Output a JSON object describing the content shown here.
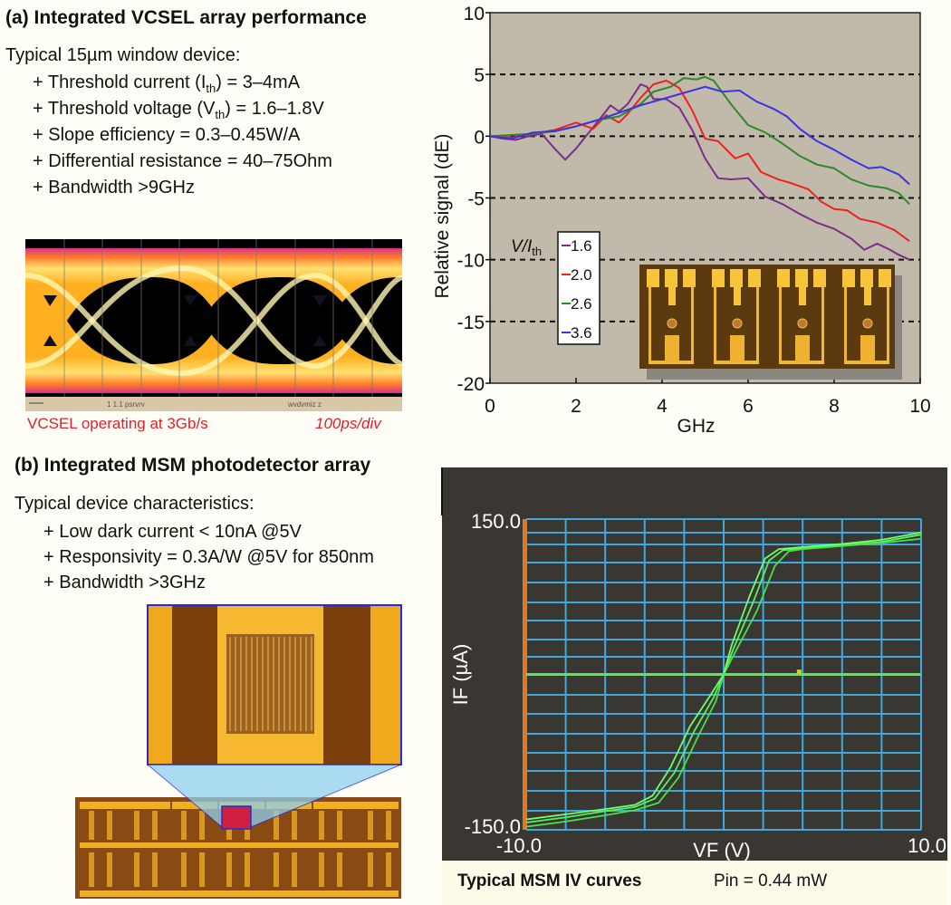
{
  "panel_a": {
    "heading": "(a) Integrated VCSEL array performance",
    "intro": "Typical 15µm window device:",
    "bullets": [
      {
        "prefix": "+ Threshold current (I",
        "sub": "th",
        "suffix": ") = 3–4mA"
      },
      {
        "prefix": "+ Threshold voltage (V",
        "sub": "th",
        "suffix": ") = 1.6–1.8V"
      },
      {
        "prefix": "+ Slope efficiency = 0.3–0.45W/A",
        "sub": "",
        "suffix": ""
      },
      {
        "prefix": "+ Differential resistance = 40–75Ohm",
        "sub": "",
        "suffix": ""
      },
      {
        "prefix": "+ Bandwidth >9GHz",
        "sub": "",
        "suffix": ""
      }
    ],
    "eye_diagram": {
      "caption_left": "VCSEL operating at 3Gb/s",
      "caption_right": "100ps/div",
      "description": "VCSEL eye diagram"
    },
    "inset_photo": "VCSEL array micrograph"
  },
  "panel_b": {
    "heading": "(b) Integrated MSM photodetector array",
    "intro": "Typical device characteristics:",
    "bullets": [
      "+ Low dark current < 10nA @5V",
      "+ Responsivity = 0.3A/W @5V for 850nm",
      "+ Bandwidth >3GHz"
    ],
    "photo": "MSM photodetector array micrograph with magnified interdigitated electrode",
    "iv_caption": "Typical MSM IV curves",
    "iv_pin": "Pin = 0.44 mW"
  },
  "chart_data": [
    {
      "type": "line",
      "title": "",
      "xlabel": "GHz",
      "ylabel": "Relative signal (dE)",
      "xlim": [
        0,
        10
      ],
      "ylim": [
        -20,
        10
      ],
      "xticks": [
        "0",
        "2",
        "4",
        "6",
        "8",
        "10"
      ],
      "yticks": [
        "10",
        "5",
        "0",
        "-5",
        "-10",
        "-15",
        "-20"
      ],
      "grid": "dashed horizontal at 5, 0, -5, -10, -15",
      "legend": {
        "title": "V/I",
        "title_sub": "th",
        "placement": "middle-left"
      },
      "background": "#c1b9aa",
      "series": [
        {
          "name": "1.6",
          "color": "#7b2d8a",
          "x": [
            0,
            0.3,
            0.6,
            0.9,
            1.2,
            1.5,
            1.75,
            2.0,
            2.3,
            2.6,
            2.8,
            3.0,
            3.2,
            3.5,
            3.65,
            3.8,
            4.1,
            4.4,
            4.7,
            5.0,
            5.3,
            5.6,
            6.0,
            6.4,
            6.8,
            7.2,
            7.6,
            8.0,
            8.4,
            8.7,
            9.0,
            9.3,
            9.5,
            9.75
          ],
          "y": [
            0,
            -0.2,
            -0.3,
            0,
            0.2,
            -1,
            -1.9,
            -1,
            0.3,
            1.6,
            2.5,
            2,
            2.6,
            4.2,
            4,
            3,
            3,
            2.3,
            0.5,
            -1.8,
            -3.4,
            -3.5,
            -3.4,
            -4.9,
            -5.5,
            -6.3,
            -7,
            -7.5,
            -8.3,
            -9.2,
            -8.7,
            -9.2,
            -9.6,
            -10
          ]
        },
        {
          "name": "2.0",
          "color": "#f0221e",
          "x": [
            0,
            0.5,
            1.0,
            1.5,
            2.0,
            2.4,
            2.7,
            3.0,
            3.2,
            3.5,
            3.8,
            4.1,
            4.4,
            4.7,
            5.0,
            5.3,
            5.7,
            6.0,
            6.3,
            6.7,
            7.0,
            7.4,
            7.7,
            8.0,
            8.3,
            8.6,
            9.0,
            9.4,
            9.75
          ],
          "y": [
            0,
            -0.1,
            0.2,
            0.5,
            1.1,
            0.6,
            1.7,
            1.1,
            1.8,
            3.1,
            4.2,
            4.5,
            3.9,
            2.1,
            -0.2,
            -0.4,
            -1.8,
            -1.4,
            -2.9,
            -3.5,
            -3.8,
            -4.3,
            -5.3,
            -5.9,
            -6.0,
            -6.7,
            -7.0,
            -7.6,
            -8.5
          ]
        },
        {
          "name": "2.6",
          "color": "#2c8a2c",
          "x": [
            0,
            0.5,
            1.0,
            1.5,
            2.0,
            2.5,
            3.0,
            3.5,
            3.8,
            4.2,
            4.5,
            4.8,
            5.0,
            5.2,
            5.6,
            6.0,
            6.4,
            6.8,
            7.2,
            7.6,
            8.0,
            8.4,
            8.8,
            9.2,
            9.5,
            9.75
          ],
          "y": [
            0,
            0.1,
            0.2,
            0.4,
            0.8,
            1.3,
            1.6,
            2.6,
            3.6,
            4.0,
            4.7,
            4.6,
            4.8,
            4.5,
            2.6,
            0.9,
            0.3,
            -0.6,
            -1.6,
            -2.3,
            -2.6,
            -3.5,
            -4.0,
            -4.2,
            -4.6,
            -5.5
          ]
        },
        {
          "name": "3.6",
          "color": "#3a35e0",
          "x": [
            0,
            0.5,
            1.0,
            1.5,
            2.0,
            2.5,
            3.0,
            3.5,
            4.0,
            4.4,
            4.8,
            5.0,
            5.4,
            5.8,
            6.2,
            6.6,
            6.9,
            7.2,
            7.6,
            8.0,
            8.4,
            8.8,
            9.1,
            9.5,
            9.75
          ],
          "y": [
            0,
            -0.2,
            0.3,
            0.4,
            0.8,
            1.3,
            1.9,
            2.5,
            3.0,
            3.4,
            3.8,
            4.0,
            3.6,
            3.7,
            2.8,
            2.2,
            1.6,
            0.6,
            -0.4,
            -1.1,
            -1.9,
            -2.6,
            -2.5,
            -3.1,
            -3.9
          ]
        }
      ]
    },
    {
      "type": "line",
      "title": "Typical MSM IV curves",
      "xlabel": "VF (V)",
      "ylabel": "IF (µA)",
      "xlim": [
        -10,
        10
      ],
      "ylim": [
        -150,
        150
      ],
      "xtick_labels": [
        "-10.0",
        "10.0"
      ],
      "ytick_labels": [
        "150.0",
        "-150.0"
      ],
      "grid": "on",
      "annotation": "Pin = 0.44 mW",
      "background": "#3a3632",
      "grid_color": "#3fa9df",
      "axis_color": "#e07a20",
      "series": [
        {
          "name": "IV sweep 1",
          "color": "#5cf05c",
          "x": [
            -10,
            -8,
            -6,
            -4.5,
            -3.5,
            -2.5,
            -1.5,
            -0.5,
            0,
            0.5,
            1.5,
            2.3,
            3.0,
            4,
            6,
            8,
            10
          ],
          "y": [
            -143,
            -138,
            -132,
            -128,
            -120,
            -95,
            -55,
            -22,
            0,
            25,
            70,
            110,
            120,
            122,
            125,
            128,
            135
          ]
        },
        {
          "name": "IV sweep 2",
          "color": "#48e048",
          "x": [
            -10,
            -8,
            -6,
            -4.5,
            -3.3,
            -2.3,
            -1.3,
            -0.4,
            0,
            0.6,
            1.7,
            2.6,
            3.3,
            4,
            6,
            8,
            10
          ],
          "y": [
            -147,
            -142,
            -136,
            -131,
            -124,
            -100,
            -60,
            -26,
            0,
            22,
            62,
            105,
            119,
            121,
            124,
            127,
            131
          ]
        },
        {
          "name": "IV sweep 3",
          "color": "#6cff6c",
          "x": [
            -10,
            -8,
            -6,
            -4.5,
            -3.6,
            -2.7,
            -1.7,
            -0.6,
            0,
            0.4,
            1.3,
            2.1,
            2.8,
            4,
            6,
            8,
            10
          ],
          "y": [
            -140,
            -135,
            -130,
            -126,
            -117,
            -90,
            -50,
            -18,
            0,
            28,
            75,
            112,
            121,
            123,
            126,
            130,
            137
          ]
        },
        {
          "name": "zero line",
          "color": "#58e858",
          "x": [
            -10,
            10
          ],
          "y": [
            0,
            0
          ]
        }
      ],
      "marker": {
        "x": 3.8,
        "y": 2,
        "color": "#d8d020"
      }
    }
  ]
}
